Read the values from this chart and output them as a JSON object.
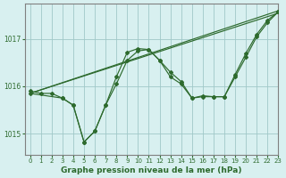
{
  "title": "Graphe pression niveau de la mer (hPa)",
  "bg_color": "#d8f0f0",
  "line_color": "#2d6a2d",
  "grid_color": "#a0c8c8",
  "axis_color": "#808080",
  "xlim": [
    -0.5,
    23
  ],
  "ylim": [
    1014.55,
    1017.75
  ],
  "yticks": [
    1015,
    1016,
    1017
  ],
  "xticks": [
    0,
    1,
    2,
    3,
    4,
    5,
    6,
    7,
    8,
    9,
    10,
    11,
    12,
    13,
    14,
    15,
    16,
    17,
    18,
    19,
    20,
    21,
    22,
    23
  ],
  "series": [
    {
      "x": [
        0,
        23
      ],
      "y": [
        1015.85,
        1017.55
      ],
      "marker": false
    },
    {
      "x": [
        0,
        23
      ],
      "y": [
        1015.85,
        1017.6
      ],
      "marker": false
    },
    {
      "x": [
        0,
        1,
        2,
        3,
        4,
        5,
        6,
        7,
        8,
        9,
        10,
        11,
        12,
        13,
        14,
        15,
        16,
        17,
        18,
        19,
        20,
        21,
        22,
        23
      ],
      "y": [
        1015.9,
        1015.85,
        1015.85,
        1015.75,
        1015.6,
        1014.82,
        1015.05,
        1015.6,
        1016.2,
        1016.72,
        1016.8,
        1016.78,
        1016.55,
        1016.2,
        1016.05,
        1015.75,
        1015.8,
        1015.78,
        1015.78,
        1016.25,
        1016.7,
        1017.1,
        1017.4,
        1017.58
      ],
      "marker": true
    },
    {
      "x": [
        0,
        3,
        4,
        5,
        6,
        7,
        8,
        9,
        10,
        11,
        12,
        13,
        14,
        15,
        16,
        17,
        18,
        19,
        20,
        21,
        22,
        23
      ],
      "y": [
        1015.85,
        1015.75,
        1015.6,
        1014.82,
        1015.05,
        1015.6,
        1016.05,
        1016.55,
        1016.75,
        1016.78,
        1016.55,
        1016.3,
        1016.1,
        1015.75,
        1015.78,
        1015.78,
        1015.78,
        1016.2,
        1016.62,
        1017.05,
        1017.35,
        1017.58
      ],
      "marker": true
    }
  ]
}
